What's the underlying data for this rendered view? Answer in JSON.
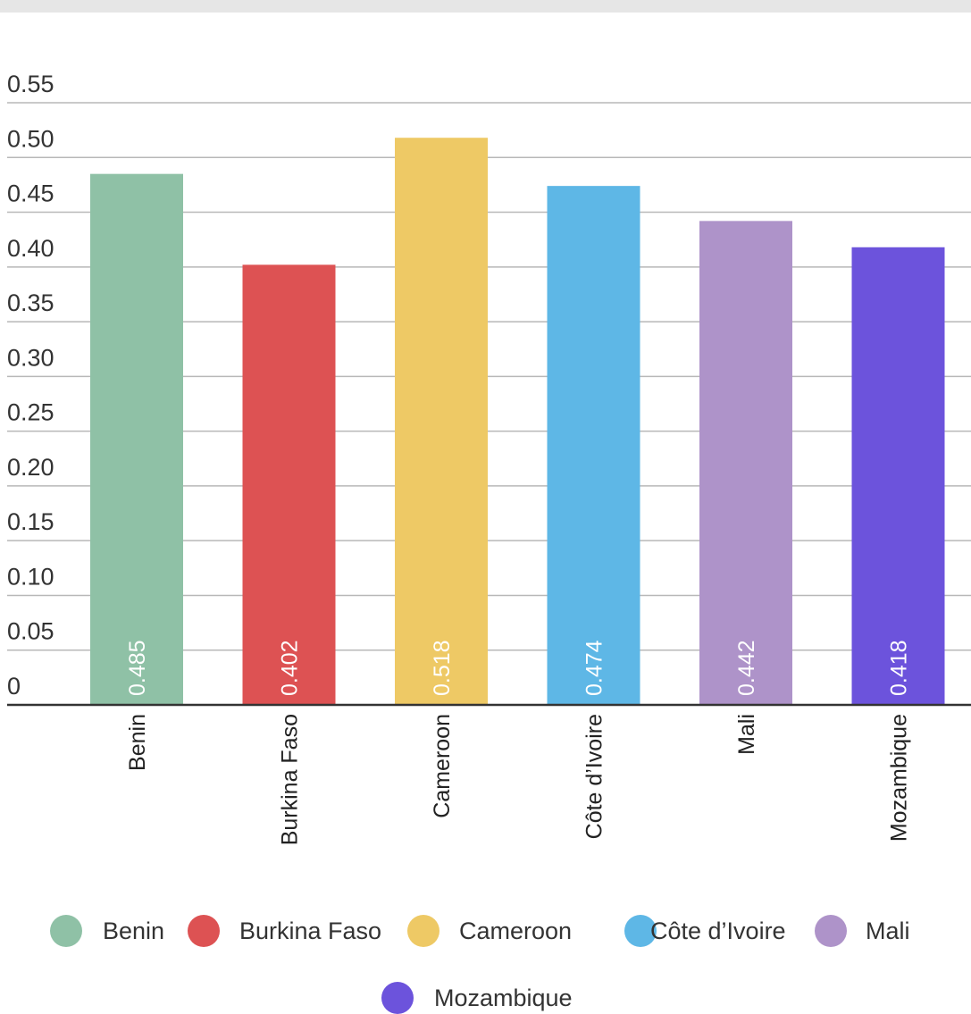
{
  "chart_data": {
    "type": "bar",
    "title": "",
    "xlabel": "",
    "ylabel": "",
    "categories": [
      "Benin",
      "Burkina Faso",
      "Cameroon",
      "Côte d’Ivoire",
      "Mali",
      "Mozambique"
    ],
    "values": [
      0.485,
      0.402,
      0.518,
      0.474,
      0.442,
      0.418
    ],
    "value_labels": [
      "0.485",
      "0.402",
      "0.518",
      "0.474",
      "0.442",
      "0.418"
    ],
    "colors": [
      "#8fc1a6",
      "#dd5253",
      "#eec965",
      "#5eb7e6",
      "#ae93c9",
      "#6c53dc"
    ],
    "ylim": [
      0,
      0.55
    ],
    "yticks": [
      0,
      0.05,
      0.1,
      0.15,
      0.2,
      0.25,
      0.3,
      0.35,
      0.4,
      0.45,
      0.5,
      0.55
    ],
    "ytick_labels": [
      "0",
      "0.05",
      "0.10",
      "0.15",
      "0.20",
      "0.25",
      "0.30",
      "0.35",
      "0.40",
      "0.45",
      "0.50",
      "0.55"
    ],
    "grid": true,
    "legend_position": "bottom",
    "legend": [
      "Benin",
      "Burkina Faso",
      "Cameroon",
      "Côte d’Ivoire",
      "Mali",
      "Mozambique"
    ]
  }
}
